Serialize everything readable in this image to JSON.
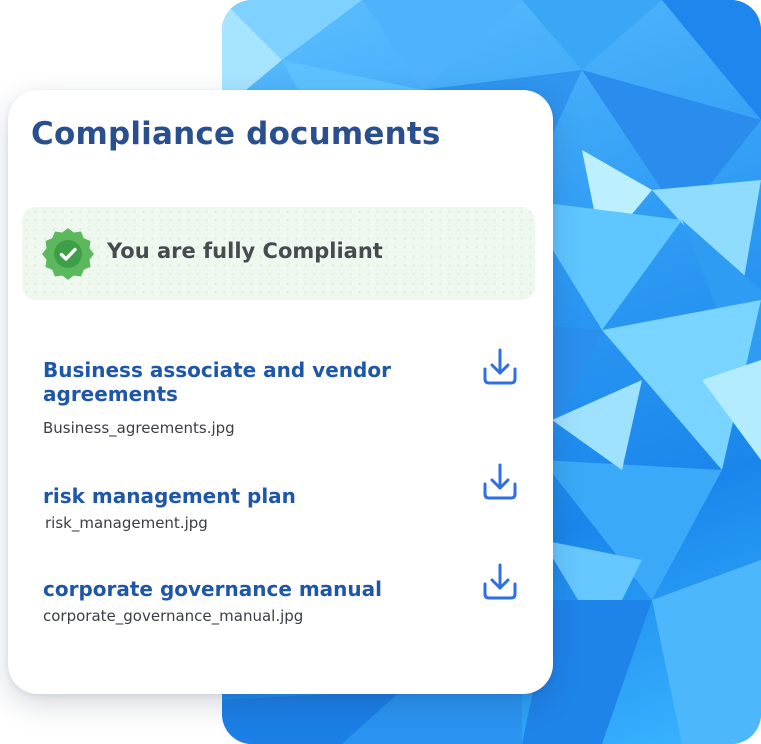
{
  "card": {
    "title": "Compliance documents",
    "status": {
      "text": "You are fully Compliant",
      "icon": "check-badge-icon",
      "color": "#5cb85c"
    }
  },
  "documents": [
    {
      "title": "Business associate and vendor agreements",
      "file": "Business_agreements.jpg",
      "icon": "download-icon"
    },
    {
      "title": "risk management plan",
      "file": "risk_management.jpg",
      "icon": "download-icon"
    },
    {
      "title": "corporate governance manual",
      "file": "corporate_governance_manual.jpg",
      "icon": "download-icon"
    }
  ],
  "colors": {
    "title": "#2a4f8f",
    "doc_title": "#1f57a8",
    "accent": "#2f6fe0",
    "background_panel": "#2f9cf4",
    "status_bg": "#eff8ee"
  }
}
